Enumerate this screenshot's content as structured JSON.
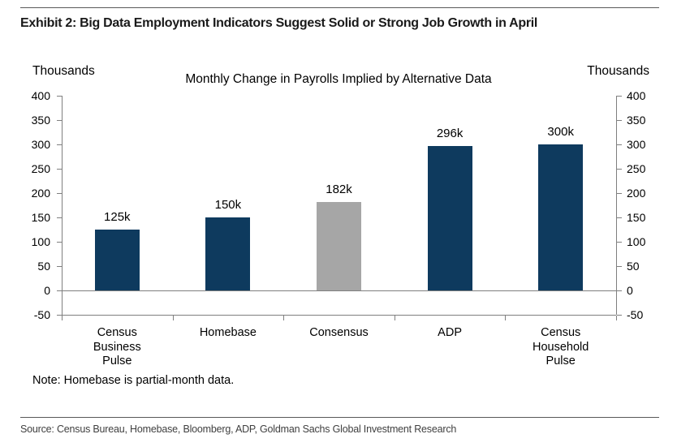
{
  "exhibit": {
    "title": "Exhibit 2: Big Data Employment Indicators Suggest Solid or Strong Job Growth in April",
    "note": "Note: Homebase is partial-month data.",
    "source": "Source: Census Bureau, Homebase, Bloomberg, ADP, Goldman Sachs Global Investment Research"
  },
  "chart_data": {
    "type": "bar",
    "title": "Monthly Change in Payrolls Implied by Alternative Data",
    "left_axis_label": "Thousands",
    "right_axis_label": "Thousands",
    "categories": [
      "Census Business Pulse",
      "Homebase",
      "Consensus",
      "ADP",
      "Census Household Pulse"
    ],
    "category_label_lines": [
      [
        "Census",
        "Business",
        "Pulse"
      ],
      [
        "Homebase"
      ],
      [
        "Consensus"
      ],
      [
        "ADP"
      ],
      [
        "Census",
        "Household",
        "Pulse"
      ]
    ],
    "values": [
      125,
      150,
      182,
      296,
      300
    ],
    "data_labels": [
      "125k",
      "150k",
      "182k",
      "296k",
      "300k"
    ],
    "bar_colors": [
      "#0e3a5e",
      "#0e3a5e",
      "#a6a6a6",
      "#0e3a5e",
      "#0e3a5e"
    ],
    "ylim": [
      -50,
      400
    ],
    "yticks": [
      400,
      350,
      300,
      250,
      200,
      150,
      100,
      50,
      0,
      -50
    ],
    "grid": "zero-baseline-only",
    "legend": "none",
    "axis_sides": [
      "left",
      "right"
    ]
  },
  "colors": {
    "navy": "#0e3a5e",
    "gray": "#a6a6a6",
    "axis_line": "#7f7f7f",
    "divider": "#595959"
  }
}
